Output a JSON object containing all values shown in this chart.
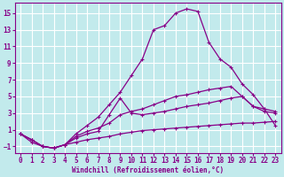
{
  "xlabel": "Windchill (Refroidissement éolien,°C)",
  "bg_color": "#c2eaec",
  "line_color": "#880088",
  "grid_color": "#ffffff",
  "xlim": [
    -0.5,
    23.5
  ],
  "ylim": [
    -1.8,
    16.2
  ],
  "yticks": [
    -1,
    1,
    3,
    5,
    7,
    9,
    11,
    13,
    15
  ],
  "xticks": [
    0,
    1,
    2,
    3,
    4,
    5,
    6,
    7,
    8,
    9,
    10,
    11,
    12,
    13,
    14,
    15,
    16,
    17,
    18,
    19,
    20,
    21,
    22,
    23
  ],
  "curves": [
    {
      "x": [
        0,
        1,
        2,
        3,
        4,
        5,
        6,
        7,
        8,
        9,
        10,
        11,
        12,
        13,
        14,
        15,
        16,
        17,
        18,
        19,
        20,
        21,
        22,
        23
      ],
      "y": [
        0.5,
        -0.5,
        -1.0,
        -1.2,
        -0.8,
        0.5,
        1.5,
        2.5,
        4.0,
        5.5,
        7.5,
        9.5,
        13.0,
        13.5,
        15.0,
        15.5,
        15.2,
        11.5,
        9.5,
        8.5,
        6.5,
        5.2,
        3.5,
        3.2
      ]
    },
    {
      "x": [
        0,
        1,
        2,
        3,
        4,
        5,
        6,
        7,
        8,
        9,
        10,
        11,
        12,
        13,
        14,
        15,
        16,
        17,
        18,
        19,
        20,
        21,
        22,
        23
      ],
      "y": [
        0.5,
        -0.2,
        -1.0,
        -1.2,
        -0.8,
        0.2,
        0.8,
        1.2,
        1.8,
        2.8,
        3.2,
        3.5,
        4.0,
        4.5,
        5.0,
        5.2,
        5.5,
        5.8,
        6.0,
        6.2,
        5.0,
        3.8,
        3.2,
        3.0
      ]
    },
    {
      "x": [
        0,
        1,
        2,
        3,
        4,
        5,
        6,
        7,
        8,
        9,
        10,
        11,
        12,
        13,
        14,
        15,
        16,
        17,
        18,
        19,
        20,
        21,
        22,
        23
      ],
      "y": [
        0.5,
        -0.2,
        -1.0,
        -1.2,
        -0.8,
        0.0,
        0.5,
        0.8,
        2.8,
        4.8,
        3.0,
        2.8,
        3.0,
        3.2,
        3.5,
        3.8,
        4.0,
        4.2,
        4.5,
        4.8,
        5.0,
        3.8,
        3.5,
        1.5
      ]
    },
    {
      "x": [
        0,
        1,
        2,
        3,
        4,
        5,
        6,
        7,
        8,
        9,
        10,
        11,
        12,
        13,
        14,
        15,
        16,
        17,
        18,
        19,
        20,
        21,
        22,
        23
      ],
      "y": [
        0.5,
        -0.2,
        -1.0,
        -1.2,
        -0.8,
        -0.5,
        -0.2,
        0.0,
        0.2,
        0.5,
        0.7,
        0.9,
        1.0,
        1.1,
        1.2,
        1.3,
        1.4,
        1.5,
        1.6,
        1.7,
        1.8,
        1.8,
        1.9,
        2.0
      ]
    }
  ]
}
